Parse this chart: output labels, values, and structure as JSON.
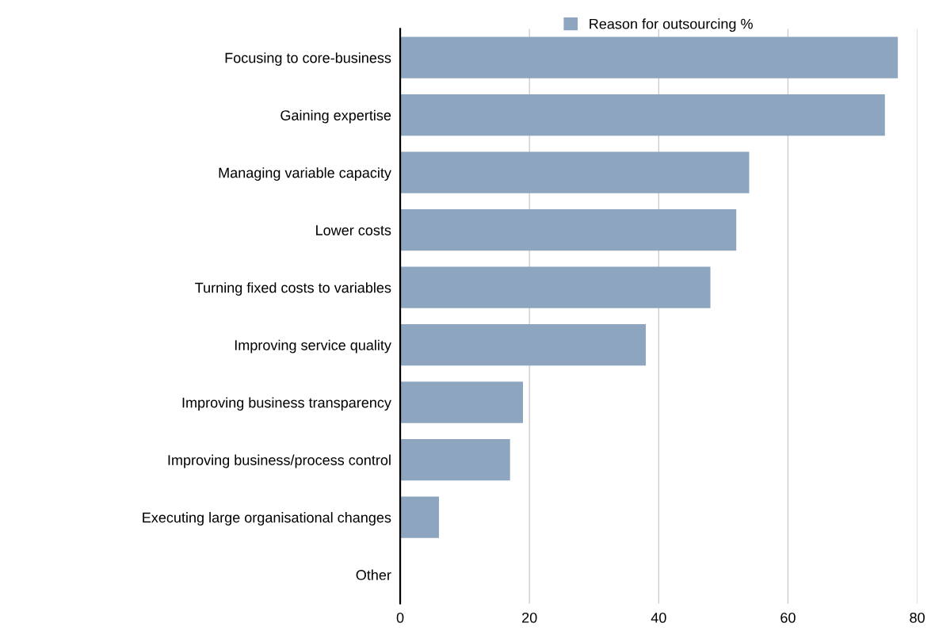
{
  "chart_data": {
    "type": "bar",
    "orientation": "horizontal",
    "categories": [
      "Focusing to core-business",
      "Gaining expertise",
      "Managing variable capacity",
      "Lower costs",
      "Turning fixed costs to variables",
      "Improving service quality",
      "Improving business transparency",
      "Improving business/process control",
      "Executing large organisational changes",
      "Other"
    ],
    "series": [
      {
        "name": "Reason for outsourcing %",
        "color": "#8ea5c0",
        "values": [
          77,
          75,
          54,
          52,
          48,
          38,
          19,
          17,
          6,
          0
        ]
      }
    ],
    "xlim": [
      0,
      80
    ],
    "xticks": [
      0,
      20,
      40,
      60,
      80
    ],
    "grid": "x",
    "legend": "top"
  }
}
